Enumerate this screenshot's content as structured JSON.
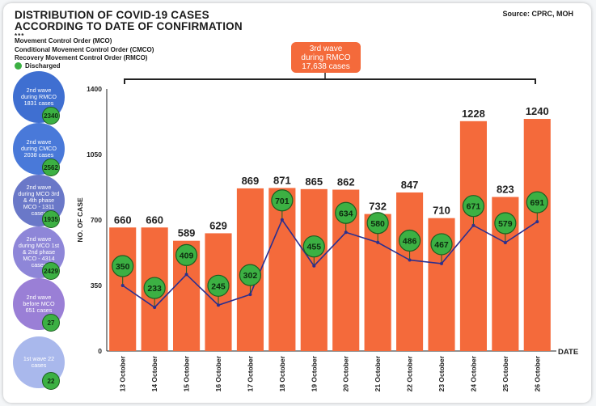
{
  "title_line1": "DISTRIBUTION OF COVID-19 CASES",
  "title_line2": "ACCORDING TO DATE OF CONFIRMATION",
  "source": "Source: CPRC, MOH",
  "dots": "***",
  "definitions": [
    "Movement Control Order (MCO)",
    "Conditional Movement Control Order (CMCO)",
    "Recovery Movement Control Order (RMCO)"
  ],
  "legend_label": "Discharged",
  "banner": {
    "line1": "3rd wave",
    "line2": "during RMCO",
    "line3": "17,638 cases"
  },
  "waves": [
    {
      "text": "2nd wave during RMCO 1831 cases",
      "count": "2340",
      "color": "#3f6fd1"
    },
    {
      "text": "2nd wave during CMCO 2038 cases",
      "count": "2562",
      "color": "#4979d9"
    },
    {
      "text": "2nd wave during MCO 3rd & 4th phase MCO - 1311 cases",
      "count": "1935",
      "color": "#6a78c8"
    },
    {
      "text": "2nd wave during MCO 1st & 2nd phase MCO - 4314 cases",
      "count": "2429",
      "color": "#8e86d8"
    },
    {
      "text": "2nd wave before MCO 651 cases",
      "count": "27",
      "color": "#9a7fd6"
    },
    {
      "text": "1st wave 22 cases",
      "count": "22",
      "color": "#a9b8ec"
    }
  ],
  "colors": {
    "bar": "#f46a3b",
    "line": "#2b2f8f",
    "discharged": "#3cb043"
  },
  "chart_data": {
    "type": "bar",
    "categories": [
      "13 October",
      "14 October",
      "15 October",
      "16 October",
      "17 October",
      "18 October",
      "19 October",
      "20 October",
      "21 October",
      "22 October",
      "23 October",
      "24 October",
      "25 October",
      "26 October"
    ],
    "series": [
      {
        "values": [
          660,
          660,
          589,
          629,
          869,
          871,
          865,
          862,
          732,
          847,
          710,
          1228,
          823,
          1240
        ]
      },
      {
        "name": "Discharged",
        "type": "line",
        "values": [
          350,
          233,
          409,
          245,
          302,
          701,
          455,
          634,
          580,
          486,
          467,
          671,
          579,
          691
        ]
      }
    ],
    "xlabel": "DATE",
    "ylabel": "NO. OF CASE",
    "yticks": [
      0,
      350,
      700,
      1050,
      1400
    ],
    "ylim": [
      0,
      1400
    ]
  }
}
